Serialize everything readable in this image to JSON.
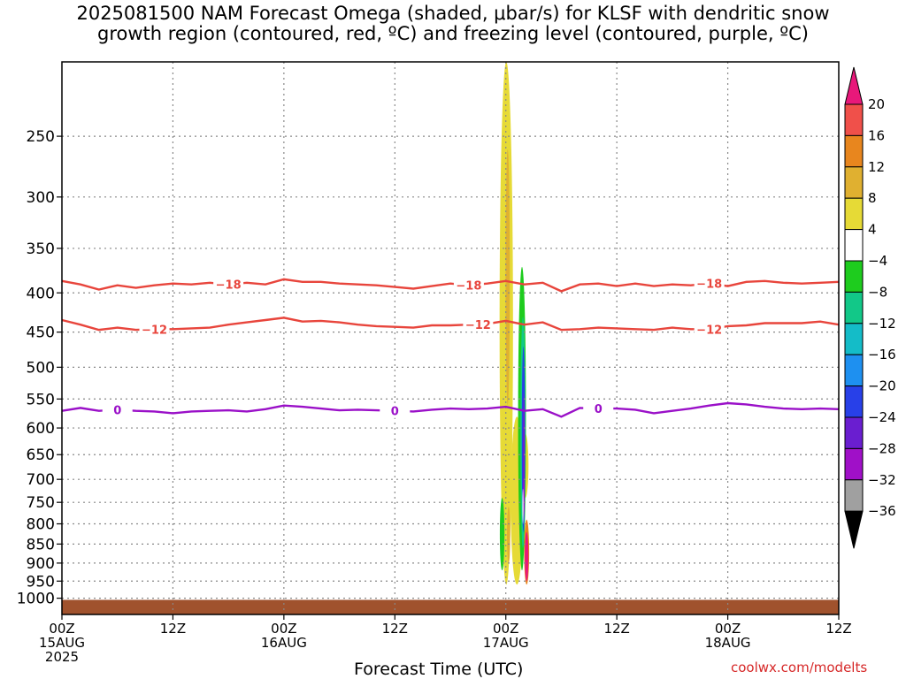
{
  "title": {
    "line1": "2025081500 NAM Forecast Omega (shaded, μbar/s) for KLSF with dendritic snow",
    "line2": "growth region (contoured, red, ºC) and freezing level (contoured, purple, ºC)"
  },
  "xlabel": "Forecast Time (UTC)",
  "credit": "coolwx.com/modelts",
  "chart_data": {
    "type": "heatmap",
    "x_unit": "hours since 2025-08-15 00Z",
    "x_range": [
      0,
      84
    ],
    "y_unit": "hPa",
    "y_range": [
      1050,
      200
    ],
    "y_scale": "log",
    "y_ticks": [
      250,
      300,
      350,
      400,
      450,
      500,
      550,
      600,
      650,
      700,
      750,
      800,
      850,
      900,
      950,
      1000
    ],
    "x_ticks": [
      {
        "x": 0,
        "line1": "00Z",
        "line2": "15AUG",
        "line3": "2025"
      },
      {
        "x": 12,
        "line1": "12Z",
        "line2": "",
        "line3": ""
      },
      {
        "x": 24,
        "line1": "00Z",
        "line2": "16AUG",
        "line3": ""
      },
      {
        "x": 36,
        "line1": "12Z",
        "line2": "",
        "line3": ""
      },
      {
        "x": 48,
        "line1": "00Z",
        "line2": "17AUG",
        "line3": ""
      },
      {
        "x": 60,
        "line1": "12Z",
        "line2": "",
        "line3": ""
      },
      {
        "x": 72,
        "line1": "00Z",
        "line2": "18AUG",
        "line3": ""
      },
      {
        "x": 84,
        "line1": "12Z",
        "line2": "",
        "line3": ""
      }
    ],
    "grid": true,
    "colorbar": {
      "levels": [
        {
          "min": 20,
          "max": null,
          "color": "#e8187a"
        },
        {
          "min": 16,
          "max": 20,
          "color": "#f0504a"
        },
        {
          "min": 12,
          "max": 16,
          "color": "#e8861e"
        },
        {
          "min": 8,
          "max": 12,
          "color": "#e0b030"
        },
        {
          "min": 4,
          "max": 8,
          "color": "#e6da36"
        },
        {
          "min": -4,
          "max": 4,
          "color": "#ffffff"
        },
        {
          "min": -8,
          "max": -4,
          "color": "#1ecc1e"
        },
        {
          "min": -12,
          "max": -8,
          "color": "#12c888"
        },
        {
          "min": -16,
          "max": -12,
          "color": "#14bcc8"
        },
        {
          "min": -20,
          "max": -16,
          "color": "#1e90f0"
        },
        {
          "min": -24,
          "max": -20,
          "color": "#2840e8"
        },
        {
          "min": -28,
          "max": -24,
          "color": "#6a1ed0"
        },
        {
          "min": -32,
          "max": -28,
          "color": "#a010c8"
        },
        {
          "min": -36,
          "max": -32,
          "color": "#a0a0a0"
        },
        {
          "min": null,
          "max": -36,
          "color": "#000000"
        }
      ],
      "tick_labels": [
        "20",
        "16",
        "12",
        "8",
        "4",
        "−4",
        "−8",
        "−12",
        "−16",
        "−20",
        "−24",
        "−28",
        "−32",
        "−36"
      ]
    },
    "contours": [
      {
        "name": "-18",
        "color": "#e8453c",
        "label": "−18",
        "x": [
          0,
          2,
          4,
          6,
          8,
          10,
          12,
          14,
          16,
          18,
          20,
          22,
          24,
          26,
          28,
          30,
          32,
          34,
          36,
          38,
          40,
          42,
          44,
          46,
          48,
          50,
          52,
          54,
          56,
          58,
          60,
          62,
          64,
          66,
          68,
          70,
          72,
          74,
          76,
          78,
          80,
          82,
          84
        ],
        "p": [
          386,
          390,
          396,
          391,
          394,
          391,
          389,
          390,
          388,
          390,
          388,
          390,
          384,
          387,
          387,
          389,
          390,
          391,
          393,
          395,
          392,
          389,
          391,
          389,
          386,
          390,
          388,
          398,
          390,
          389,
          392,
          389,
          392,
          390,
          391,
          389,
          392,
          387,
          386,
          388,
          389,
          388,
          387
        ],
        "label_x": [
          18,
          44,
          70
        ]
      },
      {
        "name": "-12",
        "color": "#e8453c",
        "label": "−12",
        "x": [
          0,
          2,
          4,
          6,
          8,
          10,
          12,
          14,
          16,
          18,
          20,
          22,
          24,
          26,
          28,
          30,
          32,
          34,
          36,
          38,
          40,
          42,
          44,
          46,
          48,
          50,
          52,
          54,
          56,
          58,
          60,
          62,
          64,
          66,
          68,
          70,
          72,
          74,
          76,
          78,
          80,
          82,
          84
        ],
        "p": [
          434,
          440,
          447,
          444,
          447,
          446,
          446,
          445,
          444,
          440,
          437,
          434,
          431,
          436,
          435,
          437,
          440,
          442,
          443,
          444,
          441,
          441,
          440,
          439,
          435,
          440,
          437,
          447,
          446,
          444,
          445,
          446,
          447,
          444,
          446,
          446,
          442,
          441,
          438,
          438,
          438,
          436,
          440
        ],
        "label_x": [
          10,
          45,
          70
        ]
      },
      {
        "name": "0",
        "color": "#9a10c8",
        "label": "0",
        "x": [
          0,
          2,
          4,
          6,
          8,
          10,
          12,
          14,
          16,
          18,
          20,
          22,
          24,
          26,
          28,
          30,
          32,
          34,
          36,
          38,
          40,
          42,
          44,
          46,
          48,
          50,
          52,
          54,
          56,
          58,
          60,
          62,
          64,
          66,
          68,
          70,
          72,
          74,
          76,
          78,
          80,
          82,
          84
        ],
        "p": [
          570,
          565,
          570,
          568,
          570,
          571,
          574,
          571,
          570,
          569,
          571,
          567,
          561,
          563,
          566,
          569,
          568,
          569,
          570,
          571,
          568,
          566,
          567,
          566,
          563,
          570,
          567,
          580,
          565,
          566,
          566,
          568,
          574,
          570,
          566,
          561,
          557,
          559,
          563,
          566,
          567,
          566,
          567
        ],
        "label_x": [
          6,
          36,
          58
        ]
      }
    ],
    "terrain": {
      "surface_p": 1005,
      "color": "#a0522d"
    }
  }
}
